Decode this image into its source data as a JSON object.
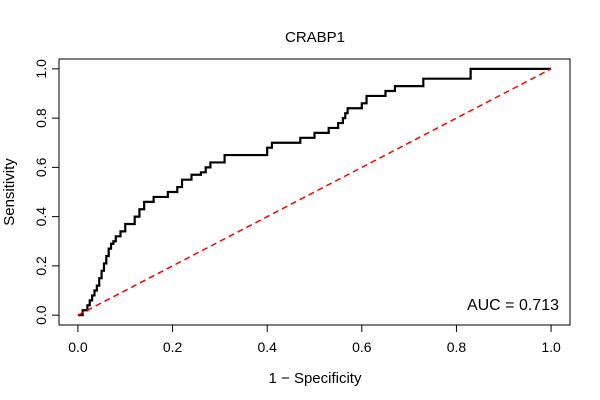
{
  "chart_data": {
    "type": "line",
    "title": "CRABP1",
    "xlabel": "1 − Specificity",
    "ylabel": "Sensitivity",
    "xlim": [
      -0.04,
      1.04
    ],
    "ylim": [
      -0.04,
      1.04
    ],
    "xticks": [
      0.0,
      0.2,
      0.4,
      0.6,
      0.8,
      1.0
    ],
    "xtick_labels": [
      "0.0",
      "0.2",
      "0.4",
      "0.6",
      "0.8",
      "1.0"
    ],
    "yticks": [
      0.0,
      0.2,
      0.4,
      0.6,
      0.8,
      1.0
    ],
    "ytick_labels": [
      "0.0",
      "0.2",
      "0.4",
      "0.6",
      "0.8",
      "1.0"
    ],
    "grid": false,
    "annotation": "AUC = 0.713",
    "series": [
      {
        "color": "#000000",
        "style": "solid",
        "x": [
          0.0,
          0.01,
          0.01,
          0.02,
          0.02,
          0.025,
          0.025,
          0.03,
          0.03,
          0.035,
          0.035,
          0.04,
          0.04,
          0.045,
          0.045,
          0.05,
          0.05,
          0.055,
          0.055,
          0.06,
          0.06,
          0.065,
          0.065,
          0.07,
          0.07,
          0.075,
          0.075,
          0.08,
          0.08,
          0.09,
          0.09,
          0.1,
          0.1,
          0.12,
          0.12,
          0.13,
          0.13,
          0.14,
          0.14,
          0.16,
          0.16,
          0.19,
          0.19,
          0.21,
          0.21,
          0.22,
          0.22,
          0.24,
          0.24,
          0.26,
          0.26,
          0.27,
          0.27,
          0.28,
          0.28,
          0.31,
          0.31,
          0.4,
          0.4,
          0.41,
          0.41,
          0.47,
          0.47,
          0.5,
          0.5,
          0.53,
          0.53,
          0.55,
          0.55,
          0.56,
          0.56,
          0.565,
          0.565,
          0.57,
          0.57,
          0.6,
          0.6,
          0.61,
          0.61,
          0.65,
          0.65,
          0.67,
          0.67,
          0.73,
          0.73,
          0.83,
          0.83,
          1.0
        ],
        "y": [
          0.0,
          0.0,
          0.02,
          0.02,
          0.04,
          0.04,
          0.06,
          0.06,
          0.08,
          0.08,
          0.1,
          0.1,
          0.12,
          0.12,
          0.15,
          0.15,
          0.18,
          0.18,
          0.21,
          0.21,
          0.24,
          0.24,
          0.27,
          0.27,
          0.29,
          0.29,
          0.3,
          0.3,
          0.32,
          0.32,
          0.34,
          0.34,
          0.37,
          0.37,
          0.4,
          0.4,
          0.43,
          0.43,
          0.46,
          0.46,
          0.48,
          0.48,
          0.5,
          0.5,
          0.52,
          0.52,
          0.55,
          0.55,
          0.57,
          0.57,
          0.58,
          0.58,
          0.6,
          0.6,
          0.62,
          0.62,
          0.65,
          0.65,
          0.68,
          0.68,
          0.7,
          0.7,
          0.72,
          0.72,
          0.74,
          0.74,
          0.76,
          0.76,
          0.78,
          0.78,
          0.8,
          0.8,
          0.82,
          0.82,
          0.84,
          0.84,
          0.86,
          0.86,
          0.89,
          0.89,
          0.91,
          0.91,
          0.93,
          0.93,
          0.96,
          0.96,
          1.0,
          1.0
        ]
      },
      {
        "color": "#ff0000",
        "style": "dashed",
        "x": [
          0.0,
          1.0
        ],
        "y": [
          0.0,
          1.0
        ]
      }
    ]
  }
}
